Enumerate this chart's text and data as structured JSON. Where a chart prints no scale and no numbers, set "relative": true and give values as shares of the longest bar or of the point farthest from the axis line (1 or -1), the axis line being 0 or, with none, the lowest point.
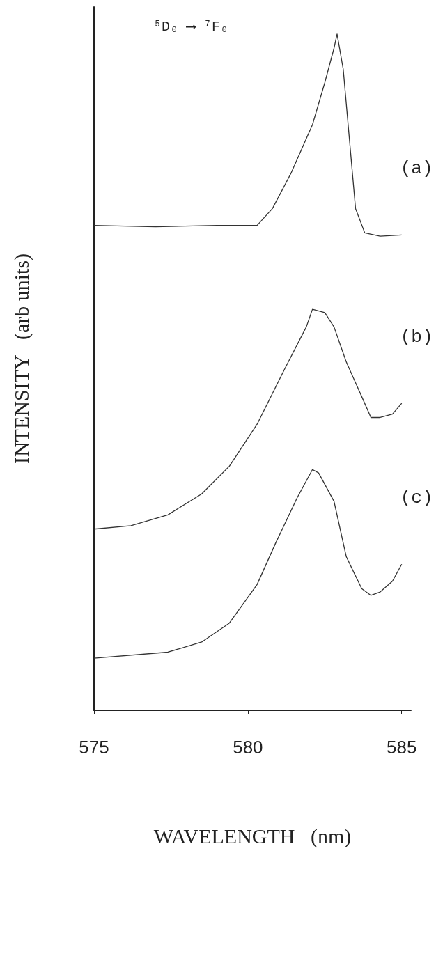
{
  "chart_data": {
    "type": "line",
    "relative": true,
    "xlabel": "WAVELENGTH   (nm)",
    "ylabel": "INTENSITY   (arb units)",
    "xlim": [
      575,
      585.3
    ],
    "xticks": [
      575,
      580,
      585
    ],
    "grid": false,
    "legend": false,
    "marker": "none",
    "line_style": "solid",
    "annotations": [
      "⁵D₀ ⟶ ⁷F₀"
    ],
    "tick_labels": "x",
    "series": [
      {
        "name": "(a)",
        "color": "#333333",
        "x": [
          575,
          577,
          579,
          580.3,
          580.8,
          581.4,
          582.1,
          582.5,
          582.8,
          582.9,
          583.1,
          583.3,
          583.5,
          583.8,
          584.3,
          585
        ],
        "values": [
          0.717,
          0.715,
          0.717,
          0.717,
          0.742,
          0.794,
          0.866,
          0.928,
          0.979,
          1,
          0.948,
          0.845,
          0.742,
          0.706,
          0.701,
          0.703
        ]
      },
      {
        "name": "(b)",
        "color": "#333333",
        "x": [
          575,
          576.2,
          577.4,
          578.5,
          579.4,
          580.3,
          581.2,
          581.9,
          582.1,
          582.5,
          582.8,
          583.2,
          583.7,
          584.0,
          584.3,
          584.7,
          585
        ],
        "values": [
          0.268,
          0.273,
          0.289,
          0.32,
          0.361,
          0.423,
          0.505,
          0.567,
          0.593,
          0.588,
          0.567,
          0.515,
          0.464,
          0.433,
          0.433,
          0.438,
          0.454
        ]
      },
      {
        "name": "(c)",
        "color": "#333333",
        "x": [
          575,
          577.4,
          578.5,
          579.4,
          580.3,
          580.9,
          581.6,
          582.1,
          582.3,
          582.8,
          583.2,
          583.7,
          584.0,
          584.3,
          584.7,
          585
        ],
        "values": [
          0.077,
          0.086,
          0.101,
          0.129,
          0.186,
          0.247,
          0.314,
          0.356,
          0.351,
          0.309,
          0.227,
          0.18,
          0.17,
          0.175,
          0.191,
          0.216
        ]
      }
    ]
  }
}
